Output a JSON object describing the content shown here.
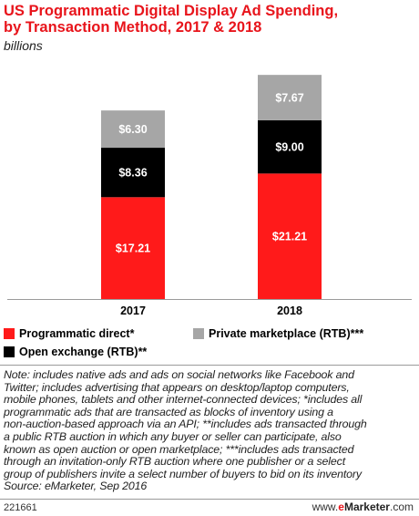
{
  "header": {
    "title_lines": [
      "US Programmatic Digital Display Ad Spending,",
      "by Transaction Method, 2017 & 2018"
    ],
    "subtitle": "billions"
  },
  "chart_data": {
    "type": "bar",
    "stacked": true,
    "title": "US Programmatic Digital Display Ad Spending, by Transaction Method, 2017 & 2018",
    "subtitle": "billions",
    "categories": [
      "2017",
      "2018"
    ],
    "series": [
      {
        "name": "Programmatic direct*",
        "color": "#ff1a1a",
        "values": [
          17.21,
          21.21
        ],
        "labels": [
          "$17.21",
          "$21.21"
        ]
      },
      {
        "name": "Open exchange (RTB)**",
        "color": "#000000",
        "values": [
          8.36,
          9.0
        ],
        "labels": [
          "$8.36",
          "$9.00"
        ]
      },
      {
        "name": "Private marketplace (RTB)***",
        "color": "#a6a6a6",
        "values": [
          6.3,
          7.67
        ],
        "labels": [
          "$6.30",
          "$7.67"
        ]
      }
    ],
    "grid": false,
    "legend_position": "bottom"
  },
  "legend": {
    "programmatic_direct": "Programmatic direct*",
    "open_exchange": "Open exchange (RTB)**",
    "private_marketplace": "Private marketplace (RTB)***"
  },
  "note": {
    "lines": [
      "Note: includes native ads and ads on social networks like Facebook and",
      "Twitter; includes advertising that appears on desktop/laptop computers,",
      "mobile phones, tablets and other internet-connected devices; *includes all",
      "programmatic ads that are transacted as blocks of inventory using a",
      "non-auction-based approach via an API; **includes ads transacted through",
      "a public RTB auction in which any buyer or seller can participate, also",
      "known as open auction or open marketplace; ***includes ads transacted",
      "through an invitation-only RTB auction where one publisher or a select",
      "group of publishers invite a select number of buyers to bid on its inventory",
      "Source: eMarketer, Sep 2016"
    ]
  },
  "footer": {
    "chart_id": "221661",
    "brand_prefix": "www.",
    "brand_e": "e",
    "brand_name": "Marketer",
    "brand_suffix": ".com"
  }
}
